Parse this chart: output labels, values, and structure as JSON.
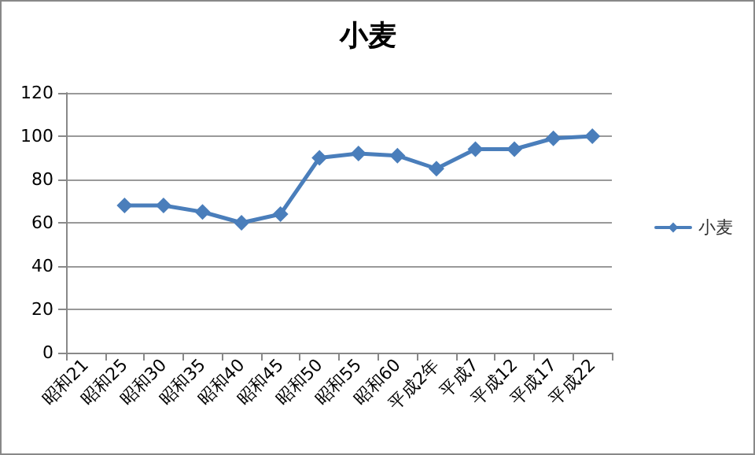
{
  "chart_data": {
    "type": "line",
    "title": "小麦",
    "categories": [
      "昭和21",
      "昭和25",
      "昭和30",
      "昭和35",
      "昭和40",
      "昭和45",
      "昭和50",
      "昭和55",
      "昭和60",
      "平成2年",
      "平成7",
      "平成12",
      "平成17",
      "平成22"
    ],
    "series": [
      {
        "name": "小麦",
        "color": "#4a7ebb",
        "values": [
          null,
          68,
          68,
          65,
          60,
          64,
          90,
          92,
          91,
          85,
          94,
          94,
          99,
          100
        ]
      }
    ],
    "ylim": [
      0,
      120
    ],
    "yticks": [
      0,
      20,
      40,
      60,
      80,
      100,
      120
    ],
    "grid": "y",
    "legend": "right",
    "marker": "diamond",
    "line_style": "solid"
  }
}
